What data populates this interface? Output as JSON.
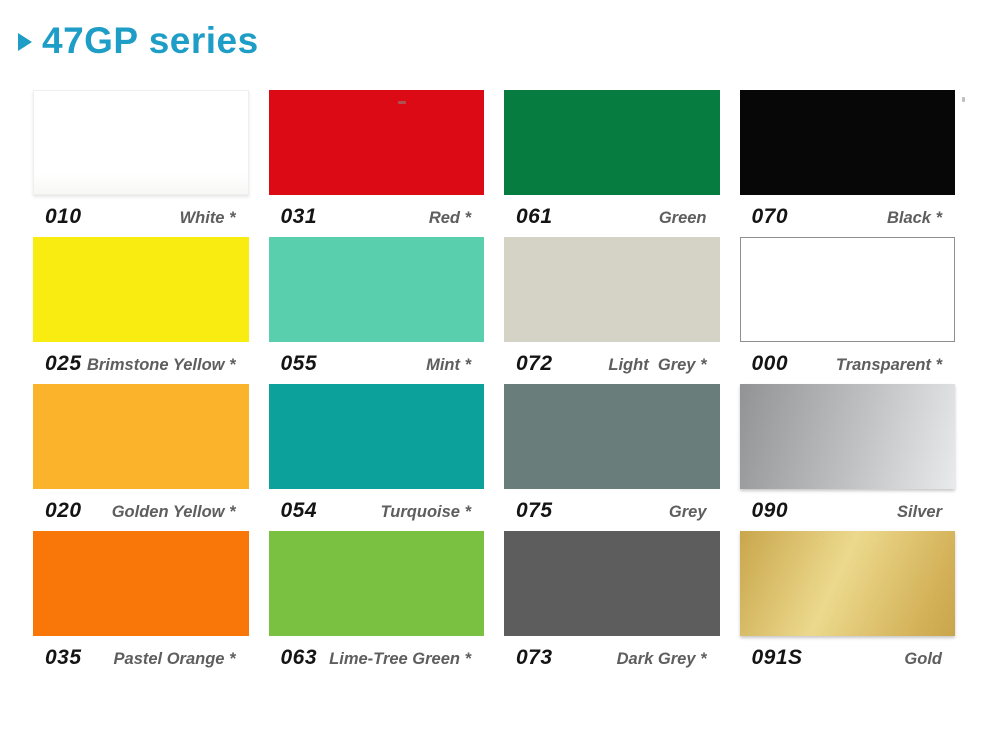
{
  "header": {
    "arrow_icon": "play-triangle",
    "title": "47GP series",
    "title_color": "#1e9dc6"
  },
  "labels_style": {
    "code_color": "#141414",
    "name_color": "#5e5e5e"
  },
  "swatches": [
    {
      "code": "010",
      "name": "White *",
      "fill": {
        "type": "white",
        "color": "#ffffff"
      }
    },
    {
      "code": "031",
      "name": "Red *",
      "fill": {
        "type": "solid",
        "color": "#dc0a14"
      }
    },
    {
      "code": "061",
      "name": "Green",
      "fill": {
        "type": "solid",
        "color": "#077c40"
      }
    },
    {
      "code": "070",
      "name": "Black *",
      "fill": {
        "type": "solid",
        "color": "#070707"
      }
    },
    {
      "code": "025",
      "name": "Brimstone Yellow *",
      "fill": {
        "type": "solid",
        "color": "#f8ec10"
      }
    },
    {
      "code": "055",
      "name": "Mint *",
      "fill": {
        "type": "solid",
        "color": "#59cfae"
      }
    },
    {
      "code": "072",
      "name": "Light  Grey *",
      "fill": {
        "type": "solid",
        "color": "#d5d3c6"
      }
    },
    {
      "code": "000",
      "name": "Transparent *",
      "fill": {
        "type": "outlined",
        "color": "#ffffff",
        "border": "#8f8f8f"
      }
    },
    {
      "code": "020",
      "name": "Golden Yellow *",
      "fill": {
        "type": "solid",
        "color": "#fab32b"
      }
    },
    {
      "code": "054",
      "name": "Turquoise *",
      "fill": {
        "type": "solid",
        "color": "#0da19c"
      }
    },
    {
      "code": "075",
      "name": "Grey",
      "fill": {
        "type": "solid",
        "color": "#697e7b"
      }
    },
    {
      "code": "090",
      "name": "Silver",
      "fill": {
        "type": "gradient",
        "angle": "105deg",
        "from": "#919395",
        "mid": "#bfc1c2",
        "to": "#e9eaeb"
      }
    },
    {
      "code": "035",
      "name": "Pastel Orange *",
      "fill": {
        "type": "solid",
        "color": "#f97708"
      }
    },
    {
      "code": "063",
      "name": "Lime-Tree Green *",
      "fill": {
        "type": "solid",
        "color": "#7ac142"
      }
    },
    {
      "code": "073",
      "name": "Dark Grey *",
      "fill": {
        "type": "solid",
        "color": "#5d5d5d"
      }
    },
    {
      "code": "091S",
      "name": "Gold",
      "fill": {
        "type": "gold",
        "angle": "115deg",
        "from": "#c9a64c",
        "mid": "#ecd98d",
        "to": "#d3b158"
      }
    }
  ]
}
